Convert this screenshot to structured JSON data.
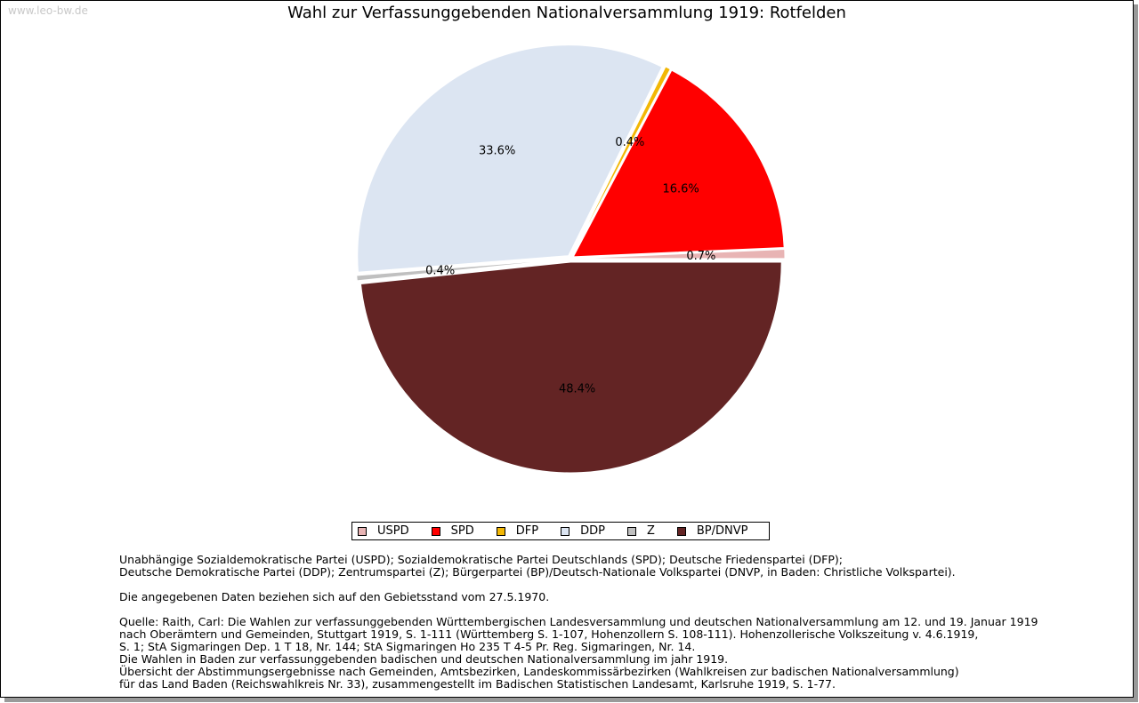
{
  "watermark": "www.leo-bw.de",
  "chart_data": {
    "type": "pie",
    "title": "Wahl zur Verfassunggebenden Nationalversammlung 1919: Rotfelden",
    "categories": [
      "USPD",
      "SPD",
      "DFP",
      "DDP",
      "Z",
      "BP/DNVP"
    ],
    "values": [
      0.7,
      16.6,
      0.4,
      33.6,
      0.4,
      48.4
    ],
    "labels": [
      "0.7%",
      "16.6%",
      "0.4%",
      "33.6%",
      "0.4%",
      "48.4%"
    ],
    "colors": [
      "#e8b4b4",
      "#ff0000",
      "#f2b705",
      "#dce5f2",
      "#c0c0c0",
      "#632424"
    ],
    "legend_position": "bottom"
  },
  "notes": {
    "parties_line1": "Unabhängige Sozialdemokratische Partei (USPD); Sozialdemokratische Partei Deutschlands (SPD); Deutsche Friedenspartei (DFP);",
    "parties_line2": "Deutsche Demokratische Partei (DDP); Zentrumspartei (Z); Bürgerpartei (BP)/Deutsch-Nationale Volkspartei (DNVP, in Baden: Christliche Volkspartei).",
    "data_note": "Die angegebenen Daten beziehen sich auf den Gebietsstand vom 27.5.1970.",
    "source_1": "Quelle: Raith, Carl: Die Wahlen zur verfassunggebenden Württembergischen Landesversammlung und deutschen Nationalversammlung am 12. und 19. Januar 1919",
    "source_2": "nach Oberämtern und Gemeinden, Stuttgart 1919, S. 1-111 (Württemberg S. 1-107, Hohenzollern S. 108-111). Hohenzollerische Volkszeitung v. 4.6.1919,",
    "source_3": "S. 1; StA Sigmaringen Dep. 1 T 18, Nr. 144; StA Sigmaringen Ho 235 T 4-5 Pr. Reg. Sigmaringen, Nr. 14.",
    "source_4": "Die Wahlen in Baden zur verfassunggebenden badischen und deutschen Nationalversammlung im jahr 1919.",
    "source_5": "Übersicht der Abstimmungsergebnisse nach Gemeinden, Amtsbezirken, Landeskommissärbezirken (Wahlkreisen zur badischen Nationalversammlung)",
    "source_6": "für das Land Baden (Reichswahlkreis Nr. 33), zusammengestellt im Badischen Statistischen Landesamt, Karlsruhe 1919, S. 1-77."
  }
}
